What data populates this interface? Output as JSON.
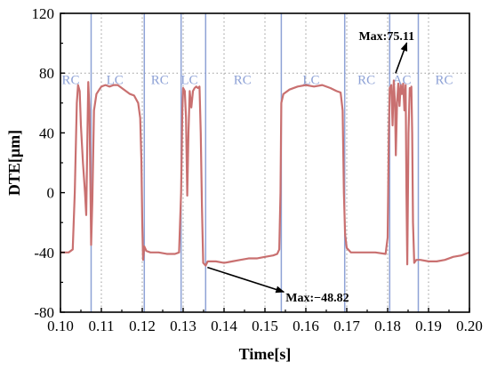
{
  "chart_data": {
    "type": "line",
    "xlabel": "Time[s]",
    "ylabel": "DTE[μm]",
    "xlim": [
      0.1,
      0.2
    ],
    "ylim": [
      -80,
      120
    ],
    "x_ticks": [
      "0.10",
      "0.11",
      "0.12",
      "0.13",
      "0.14",
      "0.15",
      "0.16",
      "0.17",
      "0.18",
      "0.19",
      "0.20"
    ],
    "y_ticks": [
      "-80",
      "-40",
      "0",
      "40",
      "80",
      "120"
    ],
    "grid": "dotted vertical at x ticks, dotted horizontal at y = 80",
    "colors": {
      "line": "#c97070",
      "region_lines": "#8ea2d6",
      "region_text": "#8ea2d6"
    },
    "region_boundaries": [
      0.1075,
      0.1205,
      0.1295,
      0.1355,
      0.154,
      0.1695,
      0.1805,
      0.1875
    ],
    "regions": [
      {
        "label": "RC",
        "x": 0.1025
      },
      {
        "label": "LC",
        "x": 0.1133
      },
      {
        "label": "RC",
        "x": 0.1243
      },
      {
        "label": "LC",
        "x": 0.1315
      },
      {
        "label": "RC",
        "x": 0.1445
      },
      {
        "label": "LC",
        "x": 0.1613
      },
      {
        "label": "RC",
        "x": 0.1748
      },
      {
        "label": "AC",
        "x": 0.1835
      },
      {
        "label": "RC",
        "x": 0.1938
      }
    ],
    "annotations": [
      {
        "text": "Max:75.11",
        "point": [
          0.1815,
          75.11
        ],
        "text_at": [
          0.1838,
          105
        ]
      },
      {
        "text": "Max:−48.82",
        "point": [
          0.1355,
          -48.82
        ],
        "text_at": [
          0.1555,
          -70
        ]
      }
    ],
    "series": [
      {
        "values": [
          [
            0.1,
            -40
          ],
          [
            0.102,
            -40
          ],
          [
            0.103,
            -38
          ],
          [
            0.1035,
            0
          ],
          [
            0.104,
            60
          ],
          [
            0.1043,
            72
          ],
          [
            0.1047,
            68
          ],
          [
            0.105,
            45
          ],
          [
            0.1055,
            20
          ],
          [
            0.106,
            0
          ],
          [
            0.1063,
            -15
          ],
          [
            0.1066,
            40
          ],
          [
            0.1068,
            74
          ],
          [
            0.1071,
            55
          ],
          [
            0.1073,
            10
          ],
          [
            0.1075,
            -35
          ],
          [
            0.1078,
            -5
          ],
          [
            0.1082,
            55
          ],
          [
            0.1088,
            66
          ],
          [
            0.1095,
            69
          ],
          [
            0.11,
            71
          ],
          [
            0.111,
            72
          ],
          [
            0.112,
            71
          ],
          [
            0.113,
            72
          ],
          [
            0.114,
            72
          ],
          [
            0.115,
            70
          ],
          [
            0.116,
            68
          ],
          [
            0.117,
            66
          ],
          [
            0.118,
            65
          ],
          [
            0.119,
            60
          ],
          [
            0.1195,
            50
          ],
          [
            0.1198,
            20
          ],
          [
            0.12,
            -20
          ],
          [
            0.1202,
            -45
          ],
          [
            0.1205,
            -36
          ],
          [
            0.121,
            -39
          ],
          [
            0.122,
            -40
          ],
          [
            0.124,
            -40
          ],
          [
            0.126,
            -41
          ],
          [
            0.128,
            -41
          ],
          [
            0.129,
            -40
          ],
          [
            0.1295,
            0
          ],
          [
            0.1298,
            55
          ],
          [
            0.13,
            70
          ],
          [
            0.1304,
            68
          ],
          [
            0.1307,
            50
          ],
          [
            0.131,
            -2
          ],
          [
            0.1313,
            40
          ],
          [
            0.1316,
            68
          ],
          [
            0.132,
            57
          ],
          [
            0.1324,
            68
          ],
          [
            0.1328,
            70
          ],
          [
            0.1332,
            71
          ],
          [
            0.1336,
            70
          ],
          [
            0.134,
            71
          ],
          [
            0.1343,
            40
          ],
          [
            0.1346,
            -10
          ],
          [
            0.1349,
            -47
          ],
          [
            0.1355,
            -48.82
          ],
          [
            0.136,
            -46
          ],
          [
            0.138,
            -46
          ],
          [
            0.14,
            -47
          ],
          [
            0.142,
            -46
          ],
          [
            0.144,
            -45
          ],
          [
            0.146,
            -44
          ],
          [
            0.148,
            -44
          ],
          [
            0.15,
            -43
          ],
          [
            0.152,
            -42
          ],
          [
            0.153,
            -41
          ],
          [
            0.1535,
            -38
          ],
          [
            0.1538,
            0
          ],
          [
            0.154,
            60
          ],
          [
            0.1545,
            66
          ],
          [
            0.156,
            69
          ],
          [
            0.158,
            71
          ],
          [
            0.16,
            72
          ],
          [
            0.162,
            71
          ],
          [
            0.164,
            72
          ],
          [
            0.166,
            70
          ],
          [
            0.1675,
            68
          ],
          [
            0.1685,
            67
          ],
          [
            0.169,
            55
          ],
          [
            0.1693,
            0
          ],
          [
            0.1696,
            -28
          ],
          [
            0.17,
            -37
          ],
          [
            0.171,
            -40
          ],
          [
            0.174,
            -40
          ],
          [
            0.177,
            -40
          ],
          [
            0.1795,
            -41
          ],
          [
            0.18,
            -30
          ],
          [
            0.1803,
            40
          ],
          [
            0.1805,
            70
          ],
          [
            0.1809,
            72
          ],
          [
            0.1812,
            45
          ],
          [
            0.1815,
            75.11
          ],
          [
            0.1818,
            60
          ],
          [
            0.182,
            25
          ],
          [
            0.1823,
            60
          ],
          [
            0.1826,
            73
          ],
          [
            0.1829,
            58
          ],
          [
            0.1832,
            72
          ],
          [
            0.1835,
            66
          ],
          [
            0.1838,
            73
          ],
          [
            0.1841,
            55
          ],
          [
            0.1844,
            72
          ],
          [
            0.1846,
            0
          ],
          [
            0.1848,
            -48
          ],
          [
            0.1851,
            40
          ],
          [
            0.1854,
            70
          ],
          [
            0.1856,
            65
          ],
          [
            0.1858,
            71
          ],
          [
            0.186,
            40
          ],
          [
            0.1862,
            -20
          ],
          [
            0.1865,
            -47
          ],
          [
            0.187,
            -45
          ],
          [
            0.188,
            -45
          ],
          [
            0.19,
            -46
          ],
          [
            0.192,
            -46
          ],
          [
            0.194,
            -45
          ],
          [
            0.196,
            -43
          ],
          [
            0.198,
            -42
          ],
          [
            0.2,
            -40
          ]
        ]
      }
    ]
  }
}
